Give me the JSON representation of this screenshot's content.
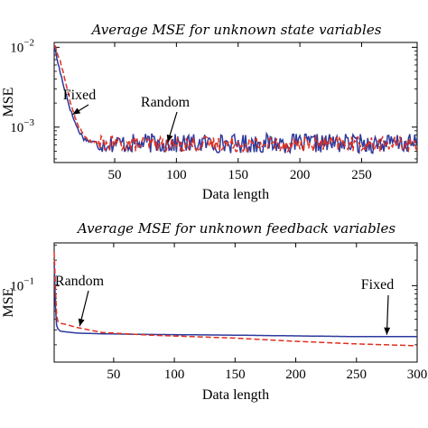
{
  "chart_data": [
    {
      "type": "line",
      "title": "Average MSE for unknown state variables",
      "xlabel": "Data length",
      "ylabel": "MSE",
      "xlim": [
        1,
        295
      ],
      "ylim": [
        0.00036,
        0.0115
      ],
      "yscale": "log",
      "xticks": [
        50,
        100,
        150,
        200,
        250
      ],
      "yticks": [
        0.001,
        0.01
      ],
      "ytick_base": "10",
      "ytick_exponents": [
        "−3",
        "−2"
      ],
      "grid": false,
      "series": [
        {
          "name": "Fixed",
          "color": "#2d3a9c",
          "style": "solid",
          "x": [
            1,
            5,
            10,
            15,
            20,
            25,
            30,
            35,
            40,
            50,
            60,
            80,
            100,
            120,
            150,
            180,
            200,
            230,
            260,
            295
          ],
          "y": [
            0.0105,
            0.0055,
            0.0028,
            0.0015,
            0.00095,
            0.00072,
            0.00066,
            0.00064,
            0.00063,
            0.00063,
            0.00062,
            0.00063,
            0.00062,
            0.00063,
            0.00062,
            0.00063,
            0.00062,
            0.00063,
            0.00062,
            0.00062
          ],
          "noise": 0.28
        },
        {
          "name": "Random",
          "color": "#e03020",
          "style": "dashed",
          "x": [
            1,
            5,
            10,
            15,
            20,
            25,
            30,
            35,
            40,
            50,
            60,
            80,
            100,
            120,
            150,
            180,
            200,
            230,
            260,
            295
          ],
          "y": [
            0.0108,
            0.0075,
            0.0038,
            0.0018,
            0.0011,
            0.00078,
            0.00066,
            0.00063,
            0.00062,
            0.00062,
            0.00061,
            0.00062,
            0.00061,
            0.00062,
            0.00061,
            0.00062,
            0.00061,
            0.00062,
            0.00061,
            0.00061
          ],
          "noise": 0.22
        }
      ],
      "annotations": [
        {
          "text": "Fixed",
          "target_series": "Fixed",
          "target_x": 16
        },
        {
          "text": "Random",
          "target_series": "Random",
          "target_x": 93
        }
      ]
    },
    {
      "type": "line",
      "title": "Average MSE for unknown feedback variables",
      "xlabel": "Data length",
      "ylabel": "MSE",
      "xlim": [
        1,
        300
      ],
      "ylim": [
        0.0125,
        0.32
      ],
      "yscale": "log",
      "xticks": [
        50,
        100,
        150,
        200,
        250,
        300
      ],
      "yticks": [
        0.1
      ],
      "ytick_base": "10",
      "ytick_exponents": [
        "−1"
      ],
      "grid": false,
      "series": [
        {
          "name": "Fixed",
          "color": "#2d3a9c",
          "style": "solid",
          "x": [
            1,
            2,
            3,
            4,
            6,
            10,
            20,
            40,
            80,
            150,
            200,
            250,
            300
          ],
          "y": [
            0.19,
            0.06,
            0.034,
            0.031,
            0.029,
            0.0285,
            0.0275,
            0.027,
            0.0265,
            0.026,
            0.0255,
            0.025,
            0.025
          ]
        },
        {
          "name": "Random",
          "color": "#e03020",
          "style": "dashed",
          "x": [
            1,
            2,
            3,
            4,
            6,
            10,
            20,
            40,
            80,
            150,
            200,
            250,
            300
          ],
          "y": [
            0.25,
            0.1,
            0.045,
            0.038,
            0.036,
            0.035,
            0.032,
            0.028,
            0.026,
            0.024,
            0.022,
            0.0205,
            0.0195
          ]
        }
      ],
      "annotations": [
        {
          "text": "Random",
          "target_series": "Random",
          "target_x": 22
        },
        {
          "text": "Fixed",
          "target_series": "Fixed",
          "target_x": 275
        }
      ]
    }
  ]
}
